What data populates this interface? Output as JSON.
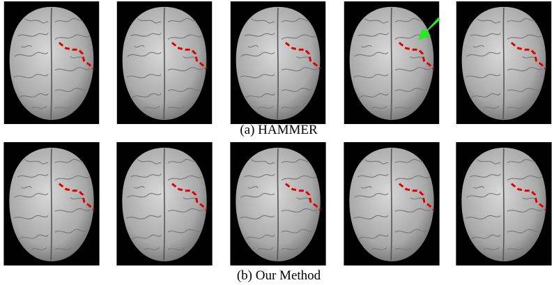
{
  "rows": [
    {
      "caption": "(a) HAMMER"
    },
    {
      "caption": "(b) Our Method"
    }
  ]
}
